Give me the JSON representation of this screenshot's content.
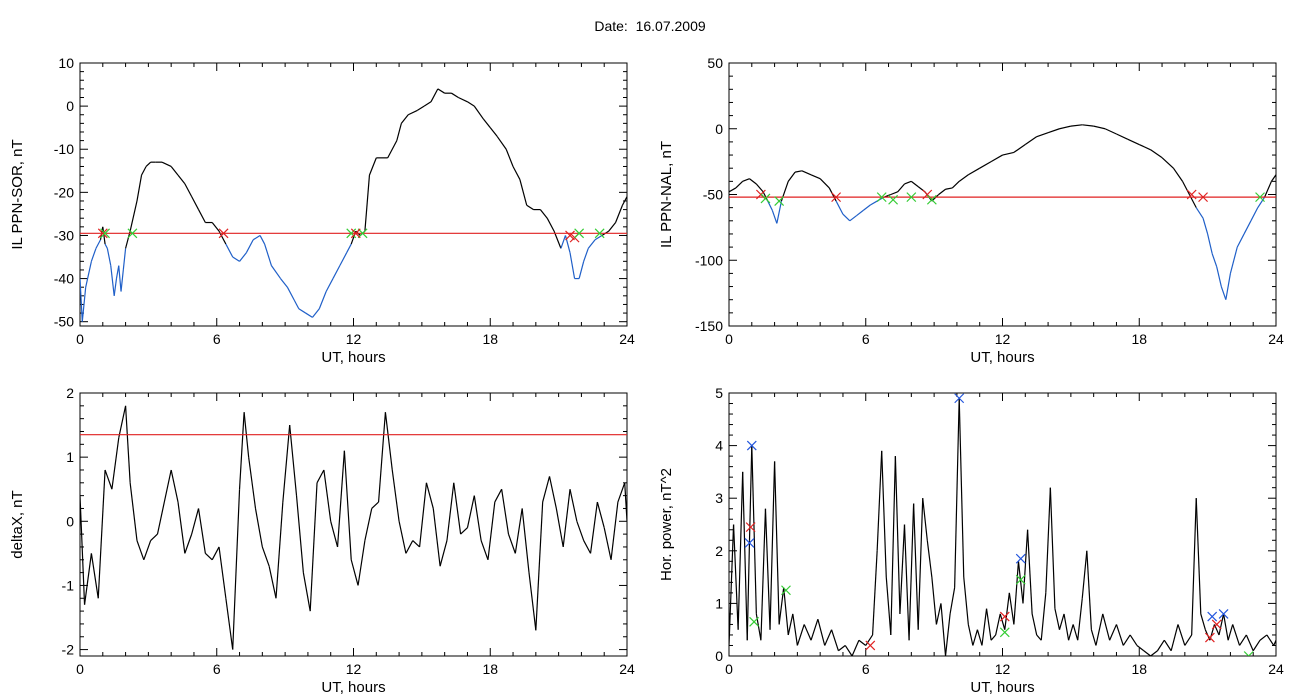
{
  "title": "Date:  16.07.2009",
  "colors": {
    "trace": "#000000",
    "below": "#1f5fc8",
    "threshold": "#e02020",
    "green_mark": "#33cc33",
    "red_mark": "#e02020",
    "blue_mark": "#2255dd"
  },
  "chart_data": [
    {
      "type": "line",
      "xlabel": "UT, hours",
      "ylabel": "IL PPN-SOR, nT",
      "xlim": [
        0,
        24
      ],
      "ylim": [
        -51,
        10
      ],
      "xticks": [
        0,
        6,
        12,
        18,
        24
      ],
      "yticks": [
        -50,
        -40,
        -30,
        -20,
        -10,
        0,
        10
      ],
      "threshold": -29.5,
      "x": [
        0,
        0.1,
        0.25,
        0.5,
        0.7,
        0.9,
        1.0,
        1.1,
        1.2,
        1.35,
        1.5,
        1.6,
        1.7,
        1.8,
        1.9,
        2.0,
        2.2,
        2.5,
        2.7,
        2.9,
        3.1,
        3.3,
        3.6,
        4.0,
        4.3,
        4.6,
        4.9,
        5.2,
        5.5,
        5.8,
        6.1,
        6.4,
        6.7,
        7.0,
        7.3,
        7.6,
        7.9,
        8.1,
        8.4,
        8.8,
        9.1,
        9.4,
        9.6,
        9.9,
        10.2,
        10.5,
        10.8,
        11.1,
        11.4,
        11.7,
        11.9,
        12.1,
        12.3,
        12.5,
        12.7,
        13.0,
        13.5,
        13.9,
        14.1,
        14.4,
        14.8,
        15.1,
        15.4,
        15.7,
        16.0,
        16.3,
        16.6,
        17.0,
        17.3,
        17.7,
        18.0,
        18.3,
        18.7,
        19.0,
        19.3,
        19.6,
        19.9,
        20.2,
        20.5,
        20.8,
        21.1,
        21.3,
        21.5,
        21.7,
        21.9,
        22.1,
        22.3,
        22.6,
        22.9,
        23.2,
        23.5,
        23.8,
        24.0
      ],
      "y": [
        -40,
        -50,
        -42,
        -36,
        -33,
        -31,
        -28,
        -32,
        -33,
        -37,
        -44,
        -40,
        -37,
        -43,
        -38,
        -33,
        -29,
        -22,
        -16,
        -14,
        -13,
        -13,
        -13,
        -14,
        -16,
        -18,
        -21,
        -24,
        -27,
        -27,
        -29,
        -32,
        -35,
        -36,
        -34,
        -31,
        -30,
        -32,
        -37,
        -40,
        -42,
        -45,
        -47,
        -48,
        -49,
        -47,
        -43,
        -40,
        -37,
        -34,
        -32,
        -29,
        -30,
        -29,
        -16,
        -12,
        -12,
        -8,
        -4,
        -2,
        -1,
        0,
        1,
        4,
        3,
        3,
        2,
        1,
        0,
        -3,
        -5,
        -7,
        -10,
        -14,
        -17,
        -23,
        -24,
        -24,
        -26,
        -29,
        -33,
        -30,
        -34,
        -40,
        -40,
        -36,
        -33,
        -31,
        -30,
        -29,
        -27,
        -23,
        -21
      ],
      "markers": [
        {
          "x": 1.0,
          "y": -29.5,
          "color": "red"
        },
        {
          "x": 1.1,
          "y": -29.5,
          "color": "green"
        },
        {
          "x": 2.3,
          "y": -29.5,
          "color": "green"
        },
        {
          "x": 6.3,
          "y": -29.5,
          "color": "red"
        },
        {
          "x": 11.9,
          "y": -29.5,
          "color": "green"
        },
        {
          "x": 12.4,
          "y": -29.5,
          "color": "green"
        },
        {
          "x": 12.1,
          "y": -29.5,
          "color": "red"
        },
        {
          "x": 21.5,
          "y": -30,
          "color": "red"
        },
        {
          "x": 21.7,
          "y": -30.5,
          "color": "red"
        },
        {
          "x": 21.9,
          "y": -29.5,
          "color": "green"
        },
        {
          "x": 22.8,
          "y": -29.5,
          "color": "green"
        }
      ]
    },
    {
      "type": "line",
      "xlabel": "UT, hours",
      "ylabel": "IL PPN-NAL, nT",
      "xlim": [
        0,
        24
      ],
      "ylim": [
        -150,
        50
      ],
      "xticks": [
        0,
        6,
        12,
        18,
        24
      ],
      "yticks": [
        -150,
        -100,
        -50,
        0,
        50
      ],
      "threshold": -52,
      "x": [
        0,
        0.3,
        0.6,
        0.9,
        1.2,
        1.5,
        1.7,
        1.9,
        2.1,
        2.3,
        2.6,
        2.9,
        3.2,
        3.6,
        4.0,
        4.4,
        4.7,
        5.0,
        5.3,
        5.6,
        5.9,
        6.2,
        6.5,
        6.8,
        7.1,
        7.4,
        7.7,
        8.0,
        8.3,
        8.6,
        8.9,
        9.2,
        9.5,
        9.8,
        10.1,
        10.5,
        11.0,
        11.5,
        12.0,
        12.5,
        13.0,
        13.5,
        14.0,
        14.5,
        15.0,
        15.5,
        16.0,
        16.5,
        17.0,
        17.5,
        18.0,
        18.5,
        19.0,
        19.5,
        19.9,
        20.2,
        20.5,
        20.8,
        21.0,
        21.2,
        21.4,
        21.6,
        21.8,
        22.0,
        22.3,
        22.6,
        22.9,
        23.2,
        23.5,
        23.8,
        24.0
      ],
      "y": [
        -48,
        -45,
        -40,
        -38,
        -42,
        -48,
        -55,
        -62,
        -72,
        -55,
        -40,
        -33,
        -32,
        -35,
        -38,
        -45,
        -55,
        -65,
        -70,
        -66,
        -62,
        -58,
        -55,
        -52,
        -50,
        -48,
        -42,
        -40,
        -44,
        -48,
        -55,
        -50,
        -46,
        -45,
        -40,
        -35,
        -30,
        -25,
        -20,
        -18,
        -12,
        -6,
        -3,
        0,
        2,
        3,
        2,
        0,
        -4,
        -8,
        -12,
        -16,
        -22,
        -30,
        -40,
        -50,
        -60,
        -68,
        -80,
        -95,
        -105,
        -120,
        -130,
        -110,
        -90,
        -80,
        -70,
        -60,
        -52,
        -40,
        -35
      ],
      "markers": [
        {
          "x": 1.4,
          "y": -50,
          "color": "red"
        },
        {
          "x": 1.6,
          "y": -53,
          "color": "green"
        },
        {
          "x": 2.2,
          "y": -55,
          "color": "green"
        },
        {
          "x": 4.7,
          "y": -52,
          "color": "red"
        },
        {
          "x": 6.7,
          "y": -52,
          "color": "green"
        },
        {
          "x": 7.2,
          "y": -54,
          "color": "green"
        },
        {
          "x": 8.0,
          "y": -52,
          "color": "green"
        },
        {
          "x": 8.7,
          "y": -50,
          "color": "red"
        },
        {
          "x": 8.9,
          "y": -54,
          "color": "green"
        },
        {
          "x": 20.3,
          "y": -50,
          "color": "red"
        },
        {
          "x": 20.8,
          "y": -52,
          "color": "red"
        },
        {
          "x": 23.3,
          "y": -52,
          "color": "green"
        }
      ]
    },
    {
      "type": "line",
      "xlabel": "UT, hours",
      "ylabel": "deltaX, nT",
      "xlim": [
        0,
        24
      ],
      "ylim": [
        -2.1,
        2.0
      ],
      "xticks": [
        0,
        6,
        12,
        18,
        24
      ],
      "yticks": [
        -2,
        -1,
        0,
        1,
        2
      ],
      "threshold": 1.35,
      "x": [
        0,
        0.2,
        0.5,
        0.8,
        1.1,
        1.4,
        1.7,
        2.0,
        2.2,
        2.5,
        2.8,
        3.1,
        3.4,
        3.7,
        4.0,
        4.3,
        4.6,
        4.9,
        5.2,
        5.5,
        5.8,
        6.1,
        6.4,
        6.7,
        7.0,
        7.2,
        7.4,
        7.7,
        8.0,
        8.3,
        8.6,
        8.9,
        9.2,
        9.5,
        9.8,
        10.1,
        10.4,
        10.7,
        11.0,
        11.3,
        11.6,
        11.9,
        12.2,
        12.5,
        12.8,
        13.1,
        13.4,
        13.7,
        14.0,
        14.3,
        14.6,
        14.9,
        15.2,
        15.5,
        15.8,
        16.1,
        16.4,
        16.7,
        17.0,
        17.3,
        17.6,
        17.9,
        18.2,
        18.5,
        18.8,
        19.1,
        19.4,
        19.7,
        20.0,
        20.3,
        20.6,
        20.9,
        21.2,
        21.5,
        21.8,
        22.1,
        22.4,
        22.7,
        23.0,
        23.3,
        23.6,
        23.9,
        24.0
      ],
      "y": [
        0.4,
        -1.3,
        -0.5,
        -1.2,
        0.8,
        0.5,
        1.3,
        1.8,
        0.6,
        -0.3,
        -0.6,
        -0.3,
        -0.2,
        0.3,
        0.8,
        0.3,
        -0.5,
        -0.2,
        0.2,
        -0.5,
        -0.6,
        -0.4,
        -1.2,
        -2.0,
        0.5,
        1.7,
        1.0,
        0.2,
        -0.4,
        -0.7,
        -1.2,
        0.3,
        1.5,
        0.4,
        -0.8,
        -1.4,
        0.6,
        0.8,
        0.0,
        -0.4,
        1.1,
        -0.6,
        -1.0,
        -0.3,
        0.2,
        0.3,
        1.7,
        0.8,
        0.0,
        -0.5,
        -0.3,
        -0.4,
        0.6,
        0.2,
        -0.7,
        -0.3,
        0.6,
        -0.2,
        -0.1,
        0.4,
        -0.3,
        -0.6,
        0.3,
        0.5,
        -0.2,
        -0.5,
        0.2,
        -0.8,
        -1.7,
        0.3,
        0.7,
        0.2,
        -0.4,
        0.5,
        0.0,
        -0.3,
        -0.5,
        0.3,
        -0.1,
        -0.6,
        0.3,
        0.6,
        0.0
      ],
      "markers": []
    },
    {
      "type": "line",
      "xlabel": "UT, hours",
      "ylabel": "Hor. power, nT^2",
      "xlim": [
        0,
        24
      ],
      "ylim": [
        0,
        5
      ],
      "xticks": [
        0,
        6,
        12,
        18,
        24
      ],
      "yticks": [
        0,
        1,
        2,
        3,
        4,
        5
      ],
      "threshold": null,
      "x": [
        0,
        0.2,
        0.4,
        0.6,
        0.8,
        0.9,
        1.0,
        1.2,
        1.4,
        1.6,
        1.8,
        2.0,
        2.2,
        2.4,
        2.6,
        2.8,
        3.0,
        3.3,
        3.6,
        3.9,
        4.2,
        4.5,
        4.8,
        5.1,
        5.4,
        5.7,
        6.0,
        6.3,
        6.5,
        6.7,
        6.9,
        7.1,
        7.3,
        7.5,
        7.7,
        7.9,
        8.1,
        8.3,
        8.5,
        8.7,
        8.9,
        9.1,
        9.3,
        9.5,
        9.7,
        9.9,
        10.1,
        10.3,
        10.5,
        10.7,
        10.9,
        11.1,
        11.3,
        11.5,
        11.7,
        11.9,
        12.1,
        12.3,
        12.5,
        12.7,
        12.9,
        13.1,
        13.3,
        13.5,
        13.7,
        13.9,
        14.1,
        14.3,
        14.5,
        14.7,
        14.9,
        15.1,
        15.3,
        15.5,
        15.7,
        15.9,
        16.1,
        16.4,
        16.7,
        17.0,
        17.3,
        17.6,
        17.9,
        18.2,
        18.5,
        18.8,
        19.1,
        19.4,
        19.7,
        20.0,
        20.3,
        20.5,
        20.7,
        20.9,
        21.1,
        21.3,
        21.5,
        21.7,
        21.9,
        22.1,
        22.4,
        22.7,
        23.0,
        23.3,
        23.6,
        23.9,
        24.0
      ],
      "y": [
        0.2,
        2.5,
        0.5,
        3.5,
        0.3,
        2.2,
        4.0,
        0.8,
        0.3,
        2.8,
        0.5,
        3.7,
        0.6,
        1.3,
        0.4,
        0.8,
        0.2,
        0.6,
        0.3,
        0.7,
        0.2,
        0.5,
        0.1,
        0.2,
        0.0,
        0.3,
        0.2,
        0.4,
        2.0,
        3.9,
        1.5,
        0.4,
        3.8,
        0.8,
        2.5,
        0.3,
        2.9,
        0.5,
        3.0,
        2.2,
        1.5,
        0.6,
        1.0,
        0.0,
        0.8,
        1.3,
        4.9,
        1.5,
        0.6,
        0.2,
        0.5,
        0.2,
        0.9,
        0.3,
        0.4,
        0.8,
        0.5,
        1.2,
        0.6,
        1.8,
        1.0,
        2.4,
        0.8,
        0.4,
        0.3,
        1.2,
        3.2,
        0.9,
        0.5,
        0.8,
        0.3,
        0.6,
        0.3,
        1.1,
        2.0,
        0.5,
        0.2,
        0.8,
        0.3,
        0.6,
        0.2,
        0.4,
        0.2,
        0.1,
        0.0,
        0.1,
        0.3,
        0.1,
        0.6,
        0.2,
        0.4,
        3.0,
        0.8,
        0.5,
        0.3,
        0.6,
        0.4,
        0.8,
        0.3,
        0.6,
        0.2,
        0.4,
        0.1,
        0.3,
        0.4,
        0.2,
        0.3
      ],
      "markers": [
        {
          "x": 0.9,
          "y": 2.15,
          "color": "blue"
        },
        {
          "x": 0.95,
          "y": 2.45,
          "color": "red"
        },
        {
          "x": 1.0,
          "y": 4.0,
          "color": "blue"
        },
        {
          "x": 1.1,
          "y": 0.65,
          "color": "green"
        },
        {
          "x": 2.5,
          "y": 1.25,
          "color": "green"
        },
        {
          "x": 6.2,
          "y": 0.2,
          "color": "red"
        },
        {
          "x": 10.1,
          "y": 4.9,
          "color": "blue"
        },
        {
          "x": 12.1,
          "y": 0.75,
          "color": "red"
        },
        {
          "x": 12.1,
          "y": 0.45,
          "color": "green"
        },
        {
          "x": 12.8,
          "y": 1.85,
          "color": "blue"
        },
        {
          "x": 12.8,
          "y": 1.45,
          "color": "green"
        },
        {
          "x": 21.1,
          "y": 0.35,
          "color": "red"
        },
        {
          "x": 21.2,
          "y": 0.75,
          "color": "blue"
        },
        {
          "x": 21.4,
          "y": 0.6,
          "color": "red"
        },
        {
          "x": 21.7,
          "y": 0.8,
          "color": "blue"
        },
        {
          "x": 22.8,
          "y": 0.0,
          "color": "green"
        }
      ]
    }
  ]
}
